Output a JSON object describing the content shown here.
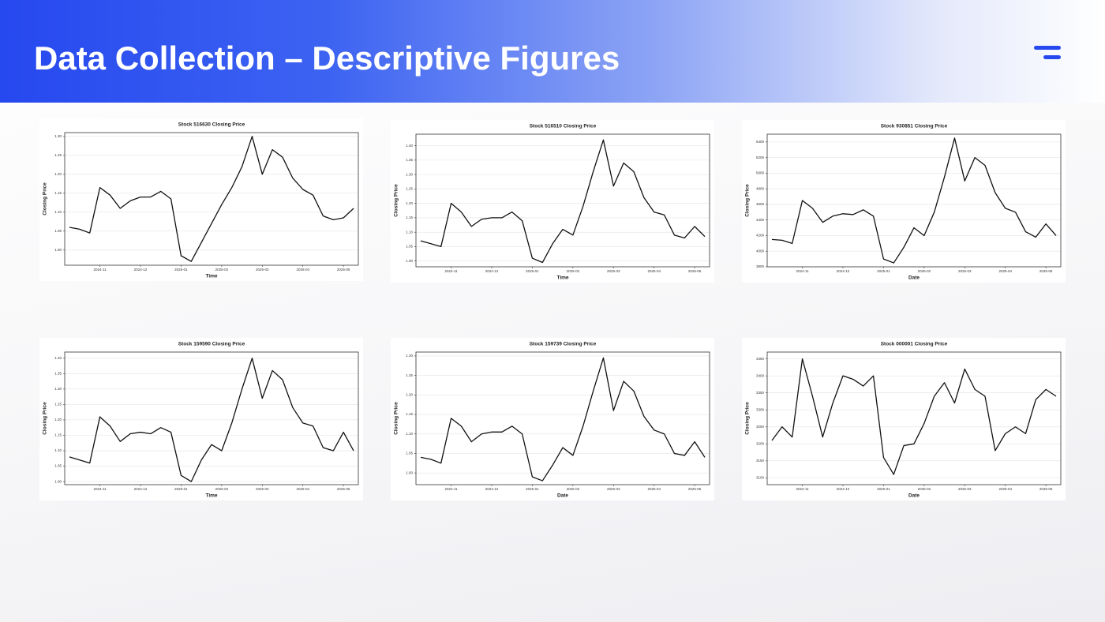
{
  "title": "Data Collection – Descriptive Figures",
  "chart_data": [
    {
      "type": "line",
      "title": "Stock 516630 Closing Price",
      "x_label": "Time",
      "y_label": "Closing Price",
      "color": "#111111",
      "grid": true,
      "categories": [
        null,
        null,
        null,
        "2024-11",
        null,
        null,
        null,
        "2024-12",
        null,
        null,
        null,
        "2025-01",
        null,
        null,
        null,
        "2025-02",
        null,
        null,
        null,
        "2025-03",
        null,
        null,
        null,
        "2025-04",
        null,
        null,
        null,
        "2025-05",
        null
      ],
      "values": [
        1.06,
        1.055,
        1.045,
        1.165,
        1.145,
        1.11,
        1.13,
        1.14,
        1.14,
        1.155,
        1.135,
        0.985,
        0.97,
        1.02,
        1.07,
        1.12,
        1.165,
        1.22,
        1.3,
        1.2,
        1.265,
        1.245,
        1.19,
        1.16,
        1.145,
        1.09,
        1.08,
        1.085,
        1.11
      ],
      "ylim": [
        0.96,
        1.31
      ],
      "yticks": [
        {
          "value": 1.0,
          "label": "1.00"
        },
        {
          "value": 1.05,
          "label": "1.05"
        },
        {
          "value": 1.1,
          "label": "1.10"
        },
        {
          "value": 1.15,
          "label": "1.15"
        },
        {
          "value": 1.2,
          "label": "1.20"
        },
        {
          "value": 1.25,
          "label": "1.25"
        },
        {
          "value": 1.3,
          "label": "1.30"
        }
      ]
    },
    {
      "type": "line",
      "title": "Stock 516510 Closing Price",
      "x_label": "Time",
      "y_label": "Closing Price",
      "color": "#111111",
      "grid": true,
      "categories": [
        null,
        null,
        null,
        "2024-11",
        null,
        null,
        null,
        "2024-12",
        null,
        null,
        null,
        "2025-01",
        null,
        null,
        null,
        "2025-02",
        null,
        null,
        null,
        "2025-03",
        null,
        null,
        null,
        "2025-04",
        null,
        null,
        null,
        "2025-05",
        null
      ],
      "values": [
        1.07,
        1.06,
        1.05,
        1.2,
        1.17,
        1.12,
        1.145,
        1.15,
        1.15,
        1.17,
        1.14,
        1.01,
        0.995,
        1.06,
        1.11,
        1.09,
        1.19,
        1.31,
        1.42,
        1.26,
        1.34,
        1.31,
        1.22,
        1.17,
        1.16,
        1.09,
        1.08,
        1.12,
        1.085
      ],
      "ylim": [
        0.98,
        1.44
      ],
      "yticks": [
        {
          "value": 1.0,
          "label": "1.00"
        },
        {
          "value": 1.05,
          "label": "1.05"
        },
        {
          "value": 1.1,
          "label": "1.10"
        },
        {
          "value": 1.15,
          "label": "1.15"
        },
        {
          "value": 1.2,
          "label": "1.20"
        },
        {
          "value": 1.25,
          "label": "1.25"
        },
        {
          "value": 1.3,
          "label": "1.30"
        },
        {
          "value": 1.35,
          "label": "1.35"
        },
        {
          "value": 1.4,
          "label": "1.40"
        }
      ]
    },
    {
      "type": "line",
      "title": "Stock 930851 Closing Price",
      "x_label": "Date",
      "y_label": "Closing Price",
      "color": "#111111",
      "grid": true,
      "categories": [
        null,
        null,
        null,
        "2024-11",
        null,
        null,
        null,
        "2024-12",
        null,
        null,
        null,
        "2025-01",
        null,
        null,
        null,
        "2025-02",
        null,
        null,
        null,
        "2025-03",
        null,
        null,
        null,
        "2025-04",
        null,
        null,
        null,
        "2025-05",
        null
      ],
      "values": [
        4150,
        4140,
        4100,
        4650,
        4550,
        4370,
        4450,
        4480,
        4470,
        4530,
        4450,
        3900,
        3850,
        4050,
        4300,
        4200,
        4500,
        4950,
        5450,
        4900,
        5200,
        5100,
        4750,
        4550,
        4500,
        4250,
        4180,
        4350,
        4200
      ],
      "ylim": [
        3800,
        5500
      ],
      "yticks": [
        3800,
        4000,
        4200,
        4400,
        4600,
        4800,
        5000,
        5200,
        5400
      ]
    },
    {
      "type": "line",
      "title": "Stock 159590 Closing Price",
      "x_label": "Time",
      "y_label": "Closing Price",
      "color": "#111111",
      "grid": true,
      "categories": [
        null,
        null,
        null,
        "2024-11",
        null,
        null,
        null,
        "2024-12",
        null,
        null,
        null,
        "2025-01",
        null,
        null,
        null,
        "2025-02",
        null,
        null,
        null,
        "2025-03",
        null,
        null,
        null,
        "2025-04",
        null,
        null,
        null,
        "2025-05",
        null
      ],
      "values": [
        1.08,
        1.07,
        1.06,
        1.21,
        1.18,
        1.13,
        1.155,
        1.16,
        1.155,
        1.175,
        1.16,
        1.02,
        1.0,
        1.07,
        1.12,
        1.1,
        1.19,
        1.3,
        1.4,
        1.27,
        1.36,
        1.33,
        1.24,
        1.19,
        1.18,
        1.11,
        1.1,
        1.16,
        1.1
      ],
      "ylim": [
        0.99,
        1.42
      ],
      "yticks": [
        {
          "value": 1.0,
          "label": "1.00"
        },
        {
          "value": 1.05,
          "label": "1.05"
        },
        {
          "value": 1.1,
          "label": "1.10"
        },
        {
          "value": 1.15,
          "label": "1.15"
        },
        {
          "value": 1.2,
          "label": "1.20"
        },
        {
          "value": 1.25,
          "label": "1.25"
        },
        {
          "value": 1.3,
          "label": "1.30"
        },
        {
          "value": 1.35,
          "label": "1.35"
        },
        {
          "value": 1.4,
          "label": "1.40"
        }
      ]
    },
    {
      "type": "line",
      "title": "Stock 159739 Closing Price",
      "x_label": "Date",
      "y_label": "Closing Price",
      "color": "#111111",
      "grid": true,
      "categories": [
        null,
        null,
        null,
        "2024-11",
        null,
        null,
        null,
        "2024-12",
        null,
        null,
        null,
        "2025-01",
        null,
        null,
        null,
        "2025-02",
        null,
        null,
        null,
        "2025-03",
        null,
        null,
        null,
        "2025-04",
        null,
        null,
        null,
        "2025-05",
        null
      ],
      "values": [
        1.04,
        1.035,
        1.025,
        1.14,
        1.12,
        1.08,
        1.1,
        1.105,
        1.105,
        1.12,
        1.1,
        0.99,
        0.98,
        1.02,
        1.065,
        1.045,
        1.12,
        1.21,
        1.295,
        1.16,
        1.235,
        1.21,
        1.145,
        1.11,
        1.1,
        1.05,
        1.045,
        1.08,
        1.04
      ],
      "ylim": [
        0.97,
        1.31
      ],
      "yticks": [
        {
          "value": 1.0,
          "label": "1.00"
        },
        {
          "value": 1.05,
          "label": "1.05"
        },
        {
          "value": 1.1,
          "label": "1.10"
        },
        {
          "value": 1.15,
          "label": "1.15"
        },
        {
          "value": 1.2,
          "label": "1.20"
        },
        {
          "value": 1.25,
          "label": "1.25"
        },
        {
          "value": 1.3,
          "label": "1.30"
        }
      ]
    },
    {
      "type": "line",
      "title": "Stock 000001 Closing Price",
      "x_label": "Date",
      "y_label": "Closing Price",
      "color": "#111111",
      "grid": true,
      "categories": [
        null,
        null,
        null,
        "2024-11",
        null,
        null,
        null,
        "2024-12",
        null,
        null,
        null,
        "2025-01",
        null,
        null,
        null,
        "2025-02",
        null,
        null,
        null,
        "2025-03",
        null,
        null,
        null,
        "2025-04",
        null,
        null,
        null,
        "2025-05",
        null
      ],
      "values": [
        3210,
        3250,
        3220,
        3450,
        3340,
        3220,
        3320,
        3400,
        3390,
        3370,
        3400,
        3160,
        3110,
        3195,
        3200,
        3260,
        3340,
        3380,
        3320,
        3420,
        3360,
        3340,
        3180,
        3230,
        3250,
        3230,
        3330,
        3360,
        3340
      ],
      "ylim": [
        3080,
        3470
      ],
      "yticks": [
        3100,
        3150,
        3200,
        3250,
        3300,
        3350,
        3400,
        3450
      ]
    }
  ]
}
